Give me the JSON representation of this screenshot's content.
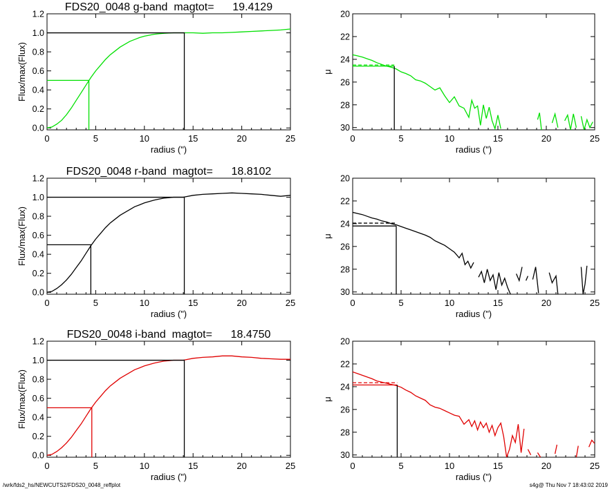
{
  "footer": {
    "left": "/wrk/fds2_hs/NEWCUTS2/FDS20_0048_reffplot",
    "right": "s4g@  Thu Nov  7 18:43:02 2019"
  },
  "colors": {
    "g": "#00e000",
    "r": "#000000",
    "i": "#e00000",
    "axis": "#000000"
  },
  "chart_data": [
    {
      "type": "line",
      "title": "FDS20_0048 g-band  magtot=      19.4129",
      "xlabel": "radius (\")",
      "ylabel": "Flux/max(Flux)",
      "xlim": [
        0,
        25
      ],
      "ylim": [
        -0.02,
        1.2
      ],
      "xticks": [
        "0",
        "5",
        "10",
        "15",
        "20",
        "25"
      ],
      "yticks": [
        "0.0",
        "0.2",
        "0.4",
        "0.6",
        "0.8",
        "1.0",
        "1.2"
      ],
      "color": "#00e000",
      "x": [
        0,
        0.5,
        1,
        1.5,
        2,
        2.5,
        3,
        3.5,
        4,
        4.5,
        5,
        5.5,
        6,
        6.5,
        7,
        7.5,
        8,
        8.5,
        9,
        9.5,
        10,
        10.5,
        11,
        11.5,
        12,
        12.5,
        13,
        13.5,
        14,
        15,
        16,
        17,
        18,
        19,
        20,
        21,
        22,
        23,
        24,
        25
      ],
      "y": [
        0,
        0.01,
        0.04,
        0.08,
        0.14,
        0.21,
        0.29,
        0.37,
        0.45,
        0.53,
        0.6,
        0.66,
        0.72,
        0.77,
        0.81,
        0.85,
        0.88,
        0.91,
        0.93,
        0.95,
        0.965,
        0.975,
        0.985,
        0.99,
        0.995,
        0.998,
        1.0,
        1.0,
        1.0,
        1.0,
        0.995,
        1.0,
        1.0,
        1.005,
        1.01,
        1.015,
        1.02,
        1.025,
        1.03,
        1.04
      ],
      "half_light": {
        "radius": 4.3,
        "flux": 0.5
      },
      "total": {
        "radius": 14.1,
        "flux": 1.0
      }
    },
    {
      "type": "line",
      "title": "",
      "xlabel": "radius (\")",
      "ylabel": "μ",
      "xlim": [
        0,
        25
      ],
      "ylim": [
        30.2,
        20
      ],
      "xticks": [
        "0",
        "5",
        "10",
        "15",
        "20",
        "25"
      ],
      "yticks": [
        "20",
        "22",
        "24",
        "26",
        "28",
        "30"
      ],
      "color": "#00e000",
      "x": [
        0,
        0.5,
        1,
        1.5,
        2,
        2.5,
        3,
        3.5,
        4,
        4.5,
        5,
        5.5,
        6,
        6.5,
        7,
        7.5,
        8,
        8.5,
        9,
        9.5,
        10,
        10.5,
        11,
        11.5,
        12,
        12.3,
        12.6,
        12.9,
        13.2,
        13.5,
        13.8,
        14.1,
        14.4,
        14.7,
        15,
        15.3,
        null,
        19.1,
        19.3,
        19.5,
        null,
        20.6,
        20.9,
        21.2,
        null,
        21.9,
        22.2,
        22.5,
        22.8,
        23.1,
        null,
        23.6,
        23.9,
        24.2,
        24.5,
        24.8
      ],
      "y": [
        23.6,
        23.7,
        23.8,
        23.95,
        24.1,
        24.3,
        24.45,
        24.6,
        24.7,
        24.85,
        25.1,
        25.25,
        25.45,
        25.8,
        25.9,
        26.1,
        26.4,
        26.7,
        26.5,
        27.2,
        27.8,
        27.3,
        28.1,
        28.3,
        29.1,
        27.6,
        28.3,
        28.1,
        29.8,
        28.0,
        29.2,
        28.2,
        29.4,
        30.1,
        28.9,
        30.1,
        null,
        29.3,
        28.7,
        30.2,
        null,
        29.6,
        28.8,
        30.0,
        null,
        29.4,
        28.9,
        30.2,
        28.8,
        30.0,
        null,
        29.0,
        30.2,
        29.3,
        30.0,
        29.5
      ],
      "mu_e": {
        "radius": 4.3,
        "mu": 24.6,
        "mu_dashed": 24.5
      }
    },
    {
      "type": "line",
      "title": "FDS20_0048 r-band  magtot=      18.8102",
      "xlabel": "radius (\")",
      "ylabel": "Flux/max(Flux)",
      "xlim": [
        0,
        25
      ],
      "ylim": [
        -0.02,
        1.2
      ],
      "xticks": [
        "0",
        "5",
        "10",
        "15",
        "20",
        "25"
      ],
      "yticks": [
        "0.0",
        "0.2",
        "0.4",
        "0.6",
        "0.8",
        "1.0",
        "1.2"
      ],
      "color": "#000000",
      "x": [
        0,
        0.5,
        1,
        1.5,
        2,
        2.5,
        3,
        3.5,
        4,
        4.5,
        5,
        5.5,
        6,
        6.5,
        7,
        7.5,
        8,
        8.5,
        9,
        9.5,
        10,
        10.5,
        11,
        11.5,
        12,
        12.5,
        13,
        13.5,
        14,
        15,
        16,
        17,
        18,
        19,
        20,
        21,
        22,
        23,
        24,
        25
      ],
      "y": [
        0,
        0.01,
        0.04,
        0.08,
        0.13,
        0.19,
        0.26,
        0.33,
        0.41,
        0.49,
        0.56,
        0.62,
        0.68,
        0.73,
        0.77,
        0.81,
        0.84,
        0.87,
        0.9,
        0.92,
        0.94,
        0.955,
        0.97,
        0.98,
        0.99,
        0.995,
        1.0,
        1.0,
        1.0,
        1.02,
        1.03,
        1.035,
        1.04,
        1.045,
        1.04,
        1.035,
        1.03,
        1.02,
        1.01,
        1.02
      ],
      "half_light": {
        "radius": 4.5,
        "flux": 0.5
      },
      "total": {
        "radius": 14.1,
        "flux": 1.0
      }
    },
    {
      "type": "line",
      "title": "",
      "xlabel": "radius (\")",
      "ylabel": "μ",
      "xlim": [
        0,
        25
      ],
      "ylim": [
        30.2,
        20
      ],
      "xticks": [
        "0",
        "5",
        "10",
        "15",
        "20",
        "25"
      ],
      "yticks": [
        "20",
        "22",
        "24",
        "26",
        "28",
        "30"
      ],
      "color": "#000000",
      "x": [
        0,
        0.5,
        1,
        1.5,
        2,
        2.5,
        3,
        3.5,
        4,
        4.5,
        5,
        5.5,
        6,
        6.5,
        7,
        7.5,
        8,
        8.5,
        9,
        9.5,
        10,
        10.5,
        11,
        11.3,
        11.6,
        11.9,
        12.2,
        12.5,
        null,
        13,
        13.3,
        13.6,
        13.9,
        14.2,
        14.5,
        14.8,
        15.1,
        15.4,
        15.7,
        16,
        16.3,
        null,
        16.9,
        17.2,
        17.5,
        null,
        17.9,
        18.1,
        null,
        18.6,
        18.9,
        19.2,
        null,
        20.3,
        20.6,
        21,
        21.2,
        null,
        23.6,
        23.8,
        24,
        24.2
      ],
      "y": [
        23.0,
        23.1,
        23.2,
        23.35,
        23.5,
        23.6,
        23.75,
        23.85,
        24.0,
        24.1,
        24.25,
        24.4,
        24.55,
        24.7,
        24.85,
        25.0,
        25.2,
        25.5,
        25.7,
        25.9,
        26.2,
        26.5,
        27.0,
        26.6,
        27.6,
        27.3,
        27.9,
        27.4,
        null,
        28.7,
        28.2,
        29.2,
        28.0,
        29.0,
        28.5,
        29.8,
        28.3,
        29.4,
        28.8,
        29.6,
        30.2,
        null,
        28.4,
        29.0,
        27.8,
        null,
        29.0,
        28.6,
        null,
        28.9,
        27.8,
        30.1,
        null,
        28.3,
        29.2,
        28.6,
        30.2,
        null,
        27.8,
        30.2,
        29.3,
        27.7
      ],
      "mu_e": {
        "radius": 4.5,
        "mu": 24.2,
        "mu_dashed": 23.95
      }
    },
    {
      "type": "line",
      "title": "FDS20_0048 i-band  magtot=      18.4750",
      "xlabel": "radius (\")",
      "ylabel": "Flux/max(Flux)",
      "xlim": [
        0,
        25
      ],
      "ylim": [
        -0.02,
        1.2
      ],
      "xticks": [
        "0",
        "5",
        "10",
        "15",
        "20",
        "25"
      ],
      "yticks": [
        "0.0",
        "0.2",
        "0.4",
        "0.6",
        "0.8",
        "1.0",
        "1.2"
      ],
      "color": "#e00000",
      "x": [
        0,
        0.5,
        1,
        1.5,
        2,
        2.5,
        3,
        3.5,
        4,
        4.5,
        5,
        5.5,
        6,
        6.5,
        7,
        7.5,
        8,
        8.5,
        9,
        9.5,
        10,
        10.5,
        11,
        11.5,
        12,
        12.5,
        13,
        13.5,
        14,
        15,
        16,
        17,
        18,
        19,
        20,
        21,
        22,
        23,
        24,
        25
      ],
      "y": [
        0,
        0.01,
        0.04,
        0.08,
        0.13,
        0.19,
        0.26,
        0.33,
        0.41,
        0.49,
        0.56,
        0.62,
        0.68,
        0.73,
        0.77,
        0.81,
        0.84,
        0.87,
        0.9,
        0.92,
        0.94,
        0.955,
        0.97,
        0.98,
        0.99,
        0.995,
        1.0,
        1.0,
        1.0,
        1.02,
        1.03,
        1.035,
        1.045,
        1.045,
        1.035,
        1.03,
        1.02,
        1.015,
        1.01,
        1.01
      ],
      "half_light": {
        "radius": 4.6,
        "flux": 0.5
      },
      "total": {
        "radius": 14.1,
        "flux": 1.0
      }
    },
    {
      "type": "line",
      "title": "",
      "xlabel": "radius (\")",
      "ylabel": "μ",
      "xlim": [
        0,
        25
      ],
      "ylim": [
        30.2,
        20
      ],
      "xticks": [
        "0",
        "5",
        "10",
        "15",
        "20",
        "25"
      ],
      "yticks": [
        "20",
        "22",
        "24",
        "26",
        "28",
        "30"
      ],
      "color": "#e00000",
      "x": [
        0,
        0.5,
        1,
        1.5,
        2,
        2.5,
        3,
        3.5,
        4,
        4.5,
        5,
        5.5,
        6,
        6.5,
        7,
        7.5,
        8,
        8.5,
        9,
        9.5,
        10,
        10.5,
        11,
        11.5,
        12,
        12.3,
        12.6,
        12.9,
        13.2,
        13.5,
        13.8,
        14.1,
        14.4,
        14.7,
        15,
        15.3,
        15.6,
        15.9,
        16.2,
        16.5,
        16.8,
        17.1,
        17.4,
        17.7,
        null,
        18.1,
        18.4,
        null,
        19.1,
        19.4,
        null,
        20.9,
        21.1,
        null,
        23.1,
        23.3,
        null,
        24.4,
        24.7,
        25
      ],
      "y": [
        22.7,
        22.85,
        23.0,
        23.15,
        23.3,
        23.5,
        23.6,
        23.7,
        23.8,
        23.9,
        24.05,
        24.3,
        24.5,
        24.8,
        25.0,
        25.2,
        25.6,
        25.8,
        25.9,
        26.1,
        26.3,
        26.5,
        26.6,
        27.3,
        26.9,
        27.5,
        27.0,
        27.8,
        27.1,
        27.6,
        27.2,
        28.0,
        27.4,
        28.3,
        27.6,
        27.2,
        28.4,
        30.2,
        29.5,
        28.3,
        28.9,
        27.3,
        29.8,
        27.7,
        null,
        29.5,
        30.0,
        null,
        29.8,
        30.2,
        null,
        29.9,
        29.1,
        null,
        30.2,
        29.2,
        null,
        29.3,
        28.7,
        29.0
      ],
      "mu_e": {
        "radius": 4.6,
        "mu": 23.85,
        "mu_dashed": 23.65
      }
    }
  ]
}
